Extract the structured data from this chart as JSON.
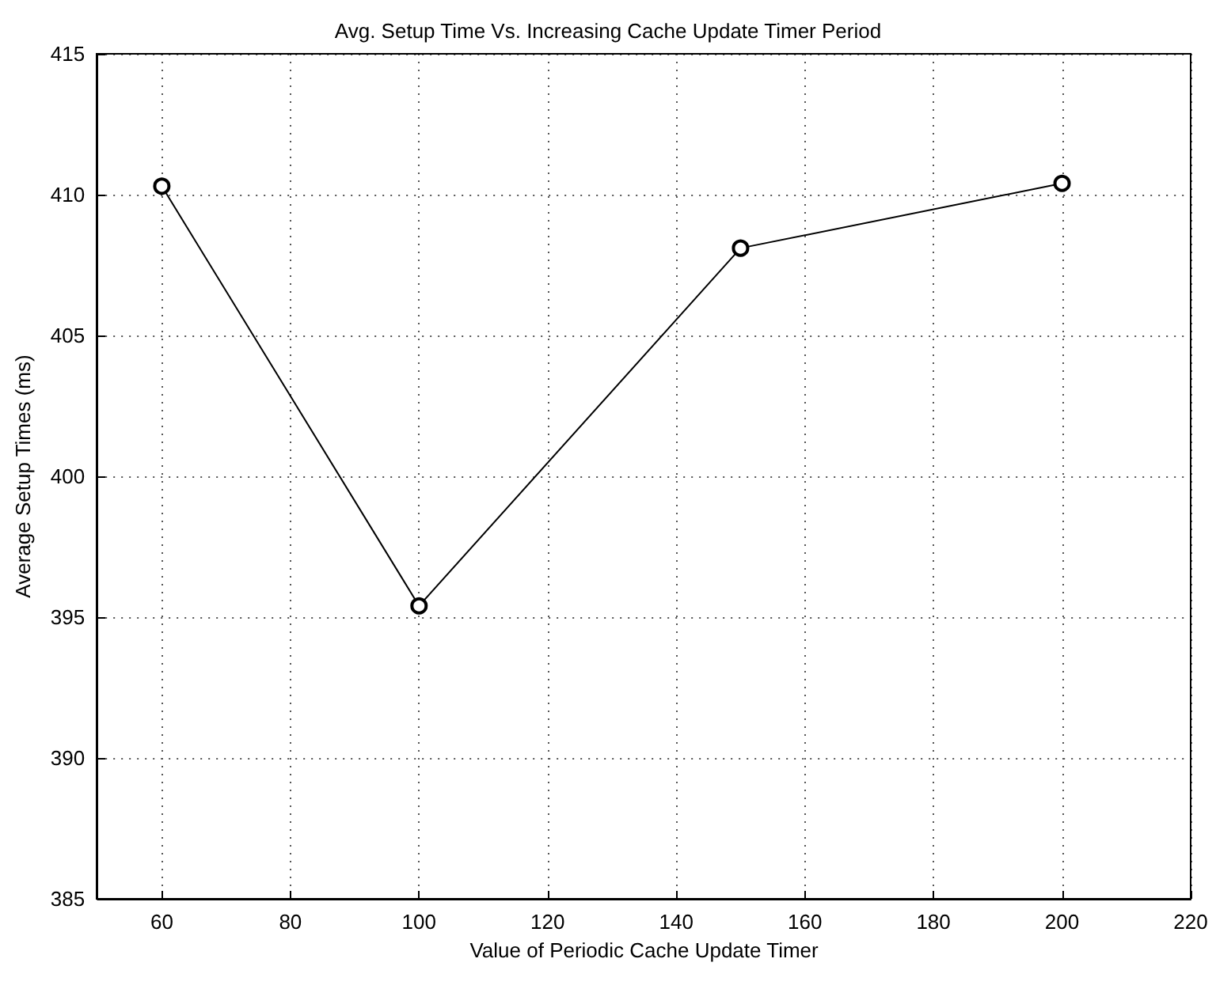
{
  "chart_data": {
    "type": "line",
    "title": "Avg. Setup Time Vs. Increasing Cache Update Timer Period",
    "xlabel": "Value of Periodic Cache Update Timer",
    "ylabel": "Average Setup Times (ms)",
    "x": [
      60,
      100,
      150,
      200
    ],
    "series": [
      {
        "color": "#000000",
        "values": [
          410.3,
          395.4,
          408.1,
          410.4
        ]
      }
    ],
    "xlim": [
      50,
      220
    ],
    "xticks": [
      60,
      80,
      100,
      120,
      140,
      160,
      180,
      200,
      220
    ],
    "ylim": [
      385,
      415
    ],
    "yticks": [
      385,
      390,
      395,
      400,
      405,
      410,
      415
    ],
    "grid": true,
    "marker": "circle",
    "line_style": "solid"
  }
}
